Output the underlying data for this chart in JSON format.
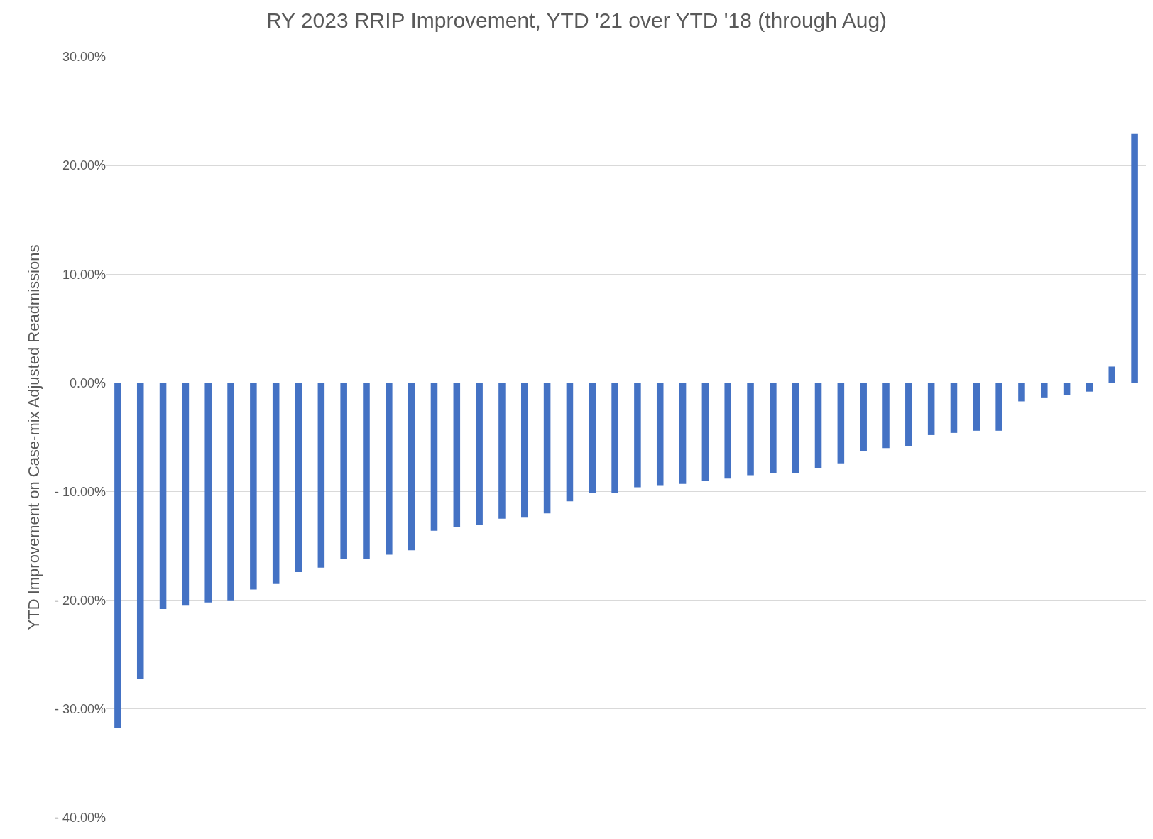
{
  "chart_data": {
    "type": "bar",
    "title": "RY 2023 RRIP Improvement, YTD '21 over YTD '18 (through Aug)",
    "ylabel": "YTD Improvement on Case-mix Adjusted Readmissions",
    "categories": [
      null,
      null,
      null,
      null,
      null,
      null,
      null,
      null,
      null,
      null,
      null,
      null,
      null,
      null,
      null,
      null,
      null,
      null,
      null,
      null,
      null,
      null,
      null,
      null,
      null,
      null,
      null,
      null,
      null,
      null,
      null,
      null,
      null,
      null,
      null,
      null,
      null,
      null,
      null,
      null,
      null,
      null,
      null,
      null,
      null,
      null
    ],
    "values": [
      -31.7,
      -27.2,
      -20.8,
      -20.5,
      -20.2,
      -20.0,
      -19.0,
      -18.5,
      -17.4,
      -17.0,
      -16.2,
      -16.2,
      -15.8,
      -15.4,
      -13.6,
      -13.3,
      -13.1,
      -12.5,
      -12.4,
      -12.0,
      -10.9,
      -10.1,
      -10.1,
      -9.6,
      -9.4,
      -9.3,
      -9.0,
      -8.8,
      -8.5,
      -8.3,
      -8.3,
      -7.8,
      -7.4,
      -6.3,
      -6.0,
      -5.8,
      -4.8,
      -4.6,
      -4.4,
      -4.4,
      -1.7,
      -1.4,
      -1.1,
      -0.8,
      1.5,
      22.9
    ],
    "color": "#4472c4",
    "ylim": [
      -40,
      30
    ],
    "yticks": [
      {
        "value": -40,
        "label": "- 40.00%"
      },
      {
        "value": -30,
        "label": "- 30.00%"
      },
      {
        "value": -20,
        "label": "- 20.00%"
      },
      {
        "value": -10,
        "label": "- 10.00%"
      },
      {
        "value": 0,
        "label": "0.00%"
      },
      {
        "value": 10,
        "label": "10.00%"
      },
      {
        "value": 20,
        "label": "20.00%"
      },
      {
        "value": 30,
        "label": "30.00%"
      }
    ],
    "grid": "y",
    "tick_labels": "y"
  }
}
